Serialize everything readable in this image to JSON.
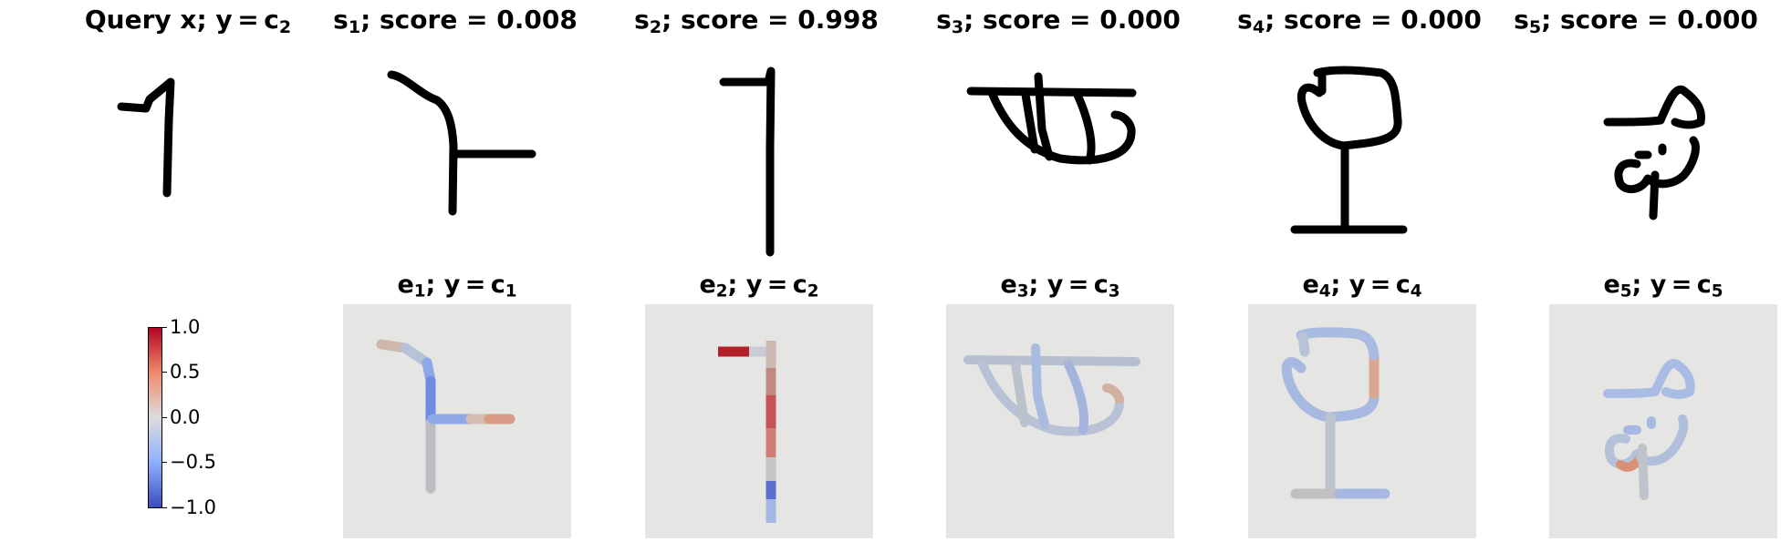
{
  "queries": [
    {
      "pre": "Query x; y = c",
      "sub": "2",
      "post": ""
    },
    {
      "pre": "s",
      "sub": "1",
      "post": "; score = 0.008"
    },
    {
      "pre": "s",
      "sub": "2",
      "post": "; score = 0.998"
    },
    {
      "pre": "s",
      "sub": "3",
      "post": "; score = 0.000"
    },
    {
      "pre": "s",
      "sub": "4",
      "post": "; score = 0.000"
    },
    {
      "pre": "s",
      "sub": "5",
      "post": "; score = 0.000"
    }
  ],
  "explanations": [
    {
      "pre": "e",
      "sub": "1",
      "mid": "; y = c",
      "sub2": "1"
    },
    {
      "pre": "e",
      "sub": "2",
      "mid": "; y = c",
      "sub2": "2"
    },
    {
      "pre": "e",
      "sub": "3",
      "mid": "; y = c",
      "sub2": "3"
    },
    {
      "pre": "e",
      "sub": "4",
      "mid": "; y = c",
      "sub2": "4"
    },
    {
      "pre": "e",
      "sub": "5",
      "mid": "; y = c",
      "sub2": "5"
    }
  ],
  "colorbar": {
    "ticks": [
      "1.0",
      "0.5",
      "0.0",
      "−0.5",
      "−1.0"
    ],
    "colors": [
      "#b40426",
      "#f08a6c",
      "#dddcdc",
      "#8db0fe",
      "#3b4cc0"
    ]
  }
}
